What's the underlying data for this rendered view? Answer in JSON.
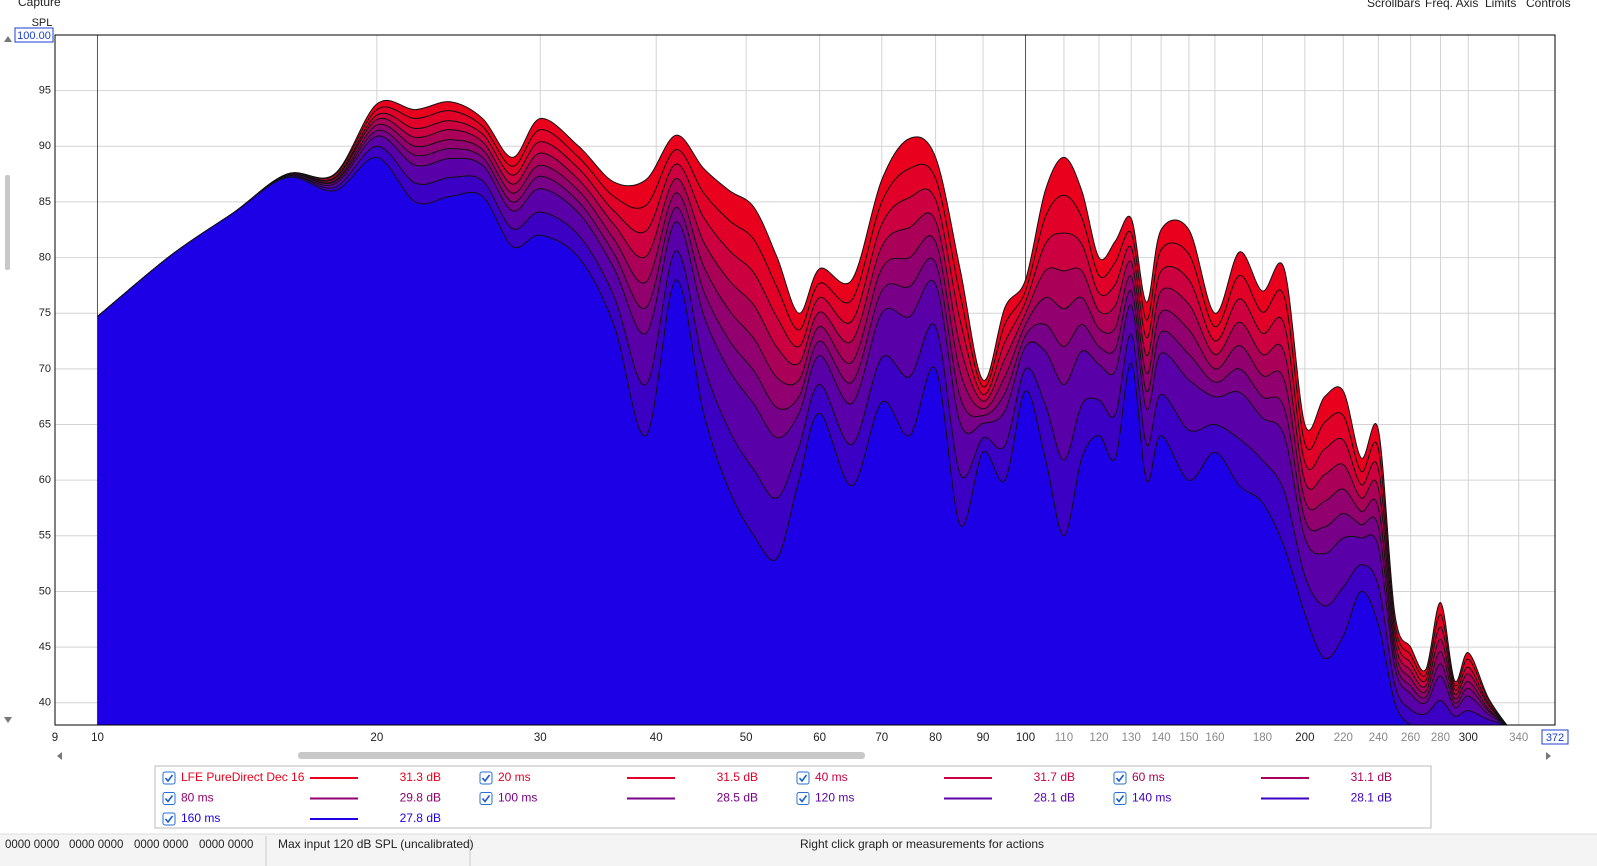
{
  "menu": {
    "capture": "Capture",
    "right": [
      "Scrollbars",
      "Freq. Axis",
      "Limits",
      "Controls"
    ]
  },
  "chart_data": {
    "type": "area",
    "y_label": "SPL",
    "x_scale": "log",
    "grid": true,
    "xlim": [
      9,
      372
    ],
    "ylim": [
      38,
      100
    ],
    "xticks": [
      9,
      10,
      20,
      30,
      40,
      50,
      60,
      70,
      80,
      90,
      100,
      110,
      120,
      130,
      140,
      150,
      160,
      180,
      200,
      220,
      240,
      260,
      280,
      300,
      340,
      {
        "value": 372,
        "label": "372"
      }
    ],
    "yticks": [
      40,
      45,
      50,
      55,
      60,
      65,
      70,
      75,
      80,
      85,
      90,
      95,
      {
        "value": 100,
        "label": "100.00"
      }
    ],
    "x": [
      10,
      12,
      14,
      16,
      18,
      20,
      22,
      24,
      26,
      28,
      30,
      33,
      36,
      39,
      42,
      45,
      48,
      51,
      54,
      57,
      60,
      65,
      70,
      75,
      80,
      85,
      90,
      95,
      100,
      105,
      110,
      115,
      120,
      125,
      130,
      135,
      140,
      150,
      160,
      170,
      180,
      190,
      200,
      210,
      220,
      230,
      240,
      250,
      260,
      270,
      280,
      290,
      300,
      315,
      330
    ],
    "series": [
      {
        "name": "LFE PureDirect Dec 16",
        "color": "#e8001c",
        "level": "31.3 dB",
        "values": [
          74.7,
          80.2,
          84,
          87.5,
          87.5,
          93.8,
          93.3,
          94,
          92.5,
          89,
          92.5,
          90,
          86.8,
          87,
          91,
          88,
          86,
          84.5,
          80,
          75,
          79,
          78,
          87,
          90.7,
          89,
          79,
          69,
          75.5,
          78,
          86,
          89,
          86,
          80,
          81.5,
          83.5,
          76,
          82.5,
          82.5,
          75,
          80.5,
          77,
          79,
          65,
          67.5,
          68,
          62,
          64.5,
          48,
          45,
          43,
          49,
          42,
          44.5,
          40.5,
          38
        ]
      },
      {
        "name": "20 ms",
        "color": "#e00028",
        "level": "31.5 dB",
        "values": [
          74.7,
          80.2,
          84,
          87.5,
          87.4,
          93.3,
          92.5,
          93.2,
          91.8,
          88.2,
          91.5,
          89,
          85.5,
          84.7,
          89.7,
          85.8,
          83.3,
          81.6,
          77.3,
          73.5,
          77.7,
          76.2,
          85,
          88,
          87.1,
          76.7,
          68.4,
          74,
          77,
          83.6,
          85.6,
          83.6,
          78.4,
          79.6,
          82.2,
          74.4,
          80.7,
          80.3,
          73.8,
          78.4,
          75.1,
          76.5,
          63.3,
          65.2,
          65.8,
          60.8,
          62.8,
          47.2,
          44.3,
          42.5,
          47.9,
          41.6,
          43.9,
          40.3,
          38
        ]
      },
      {
        "name": "40 ms",
        "color": "#cc0040",
        "level": "31.7 dB",
        "values": [
          74.7,
          80.2,
          84,
          87.5,
          87.2,
          92.8,
          91.6,
          92.3,
          91.1,
          87.4,
          90.4,
          88,
          84.2,
          82.4,
          88.4,
          83.6,
          80.6,
          78.6,
          74.6,
          72,
          76.4,
          74.3,
          83,
          85.4,
          85.2,
          74.4,
          67.7,
          72.4,
          76,
          81.2,
          82.2,
          81.2,
          76.8,
          77.6,
          80.9,
          72.8,
          78.8,
          78,
          72.5,
          76.3,
          73.2,
          74,
          61.6,
          62.8,
          63.6,
          59.6,
          61,
          46.4,
          43.6,
          42,
          46.8,
          41.2,
          43.2,
          40,
          38
        ]
      },
      {
        "name": "60 ms",
        "color": "#aa0058",
        "level": "31.1 dB",
        "values": [
          74.7,
          80.2,
          84,
          87.4,
          87.1,
          92.4,
          90.8,
          91.5,
          90.4,
          86.6,
          89.4,
          87,
          83,
          80.1,
          87.1,
          81.4,
          77.9,
          75.7,
          71.9,
          70.5,
          75.1,
          72.5,
          81,
          82.7,
          83.3,
          72.1,
          67.1,
          70.9,
          75,
          78.8,
          78.8,
          78.8,
          75.2,
          75.7,
          79.6,
          71.2,
          77,
          75.8,
          71.3,
          74.2,
          71.3,
          71.5,
          59.9,
          60.5,
          61.4,
          58.4,
          59.3,
          45.6,
          42.9,
          41.5,
          45.7,
          40.8,
          42.6,
          39.8,
          38
        ]
      },
      {
        "name": "80 ms",
        "color": "#920070",
        "level": "29.8 dB",
        "values": [
          74.7,
          80.2,
          84,
          87.4,
          86.9,
          91.9,
          90,
          90.6,
          89.7,
          85.8,
          88.3,
          86,
          81.7,
          77.8,
          85.8,
          79.2,
          75.2,
          72.7,
          69.2,
          69,
          73.8,
          70.6,
          79,
          80,
          81.4,
          69.8,
          66.4,
          69.3,
          74,
          76.4,
          75.4,
          76.4,
          73.6,
          73.7,
          78.3,
          69.6,
          75.1,
          73.5,
          70,
          72.1,
          69.4,
          69,
          58.2,
          58.1,
          59.2,
          57.2,
          57.5,
          44.8,
          42.2,
          41,
          44.6,
          40.4,
          41.9,
          39.5,
          38
        ]
      },
      {
        "name": "100 ms",
        "color": "#780088",
        "level": "28.5 dB",
        "values": [
          74.7,
          80.2,
          84,
          87.4,
          86.8,
          91.4,
          89.2,
          89.8,
          89,
          85,
          87.3,
          85,
          80.4,
          75.5,
          84.5,
          77,
          72.5,
          69.8,
          66.5,
          67.5,
          72.5,
          68.8,
          77,
          77.4,
          79.5,
          67.5,
          65.8,
          67.8,
          73,
          74,
          72,
          74,
          72,
          71.8,
          77,
          68,
          73.3,
          71.3,
          68.8,
          70,
          67.5,
          66.5,
          56.5,
          55.8,
          57,
          56,
          55.8,
          44,
          41.5,
          40.5,
          43.5,
          40,
          41.3,
          39.3,
          38
        ]
      },
      {
        "name": "120 ms",
        "color": "#5a00a8",
        "level": "28.1 dB",
        "values": [
          74.7,
          80.2,
          84,
          87.3,
          86.6,
          90.9,
          88.3,
          88.9,
          88.3,
          84.2,
          86.2,
          84,
          79.1,
          73.2,
          83.2,
          74.8,
          69.8,
          66.8,
          63.8,
          66,
          71.2,
          66.9,
          75,
          74.7,
          77.6,
          65.2,
          65.1,
          66.2,
          72,
          71.6,
          68.6,
          71.6,
          70.4,
          69.8,
          75.7,
          66.4,
          71.4,
          69,
          67.5,
          67.9,
          65.6,
          64,
          54.8,
          53.4,
          54.8,
          54.8,
          54,
          43.2,
          40.8,
          40,
          42.4,
          39.6,
          40.6,
          39,
          38
        ]
      },
      {
        "name": "140 ms",
        "color": "#3c00c4",
        "level": "28.1 dB",
        "values": [
          74.7,
          80.2,
          84,
          87.3,
          86.3,
          90,
          86.7,
          87.2,
          86.9,
          82.6,
          84.1,
          82,
          76.6,
          68.6,
          80.6,
          70.4,
          64.4,
          60.9,
          58.4,
          63,
          68.6,
          63.2,
          71,
          69.3,
          73.8,
          60.6,
          63.8,
          63.1,
          70,
          66.8,
          61.8,
          66.8,
          67.2,
          65.9,
          73.1,
          63.2,
          67.7,
          64.5,
          65,
          63.7,
          61.8,
          59,
          51.4,
          48.7,
          50.4,
          52.4,
          50.5,
          41.6,
          39.4,
          39,
          40.2,
          38.8,
          39.3,
          38.5,
          38
        ]
      },
      {
        "name": "160 ms",
        "color": "#1e00e6",
        "level": "27.8 dB",
        "values": [
          74.7,
          80.2,
          84,
          87.2,
          86,
          89,
          85,
          85.5,
          85.5,
          81,
          82,
          80,
          74,
          64,
          78,
          66,
          59,
          55,
          53,
          60,
          66,
          59.5,
          67,
          64,
          70,
          56,
          62.5,
          60,
          68,
          62,
          55,
          62,
          64,
          62,
          70.5,
          60,
          64,
          60,
          62.5,
          59.5,
          58,
          54,
          48,
          44,
          46,
          50,
          47,
          40,
          38,
          38,
          38,
          38,
          38,
          38,
          38
        ]
      }
    ]
  },
  "status_bar": {
    "counters": [
      "0000 0000",
      "0000 0000",
      "0000 0000",
      "0000 0000"
    ],
    "input": "Max input 120 dB SPL (uncalibrated)",
    "hint": "Right click graph or measurements for actions"
  }
}
